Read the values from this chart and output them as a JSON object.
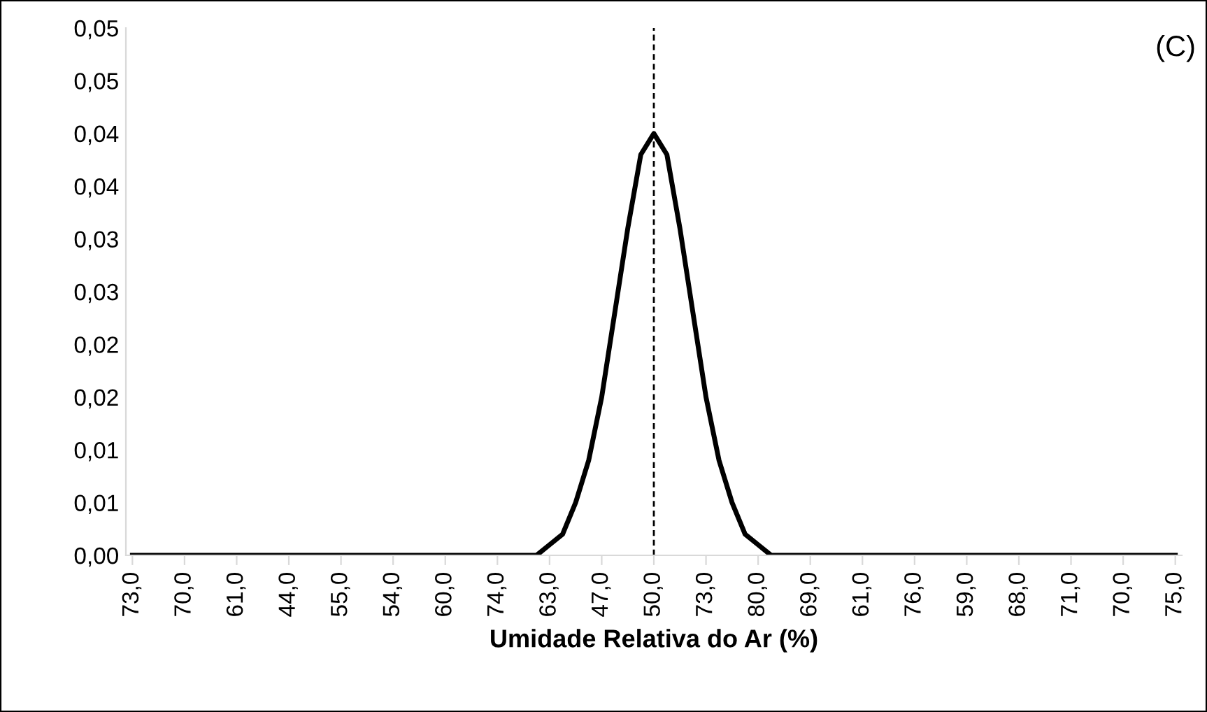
{
  "chart_data": {
    "type": "line",
    "xlabel": "Umidade Relativa do Ar (%)",
    "categories": [
      "73,0",
      null,
      null,
      null,
      "70,0",
      null,
      null,
      null,
      "61,0",
      null,
      null,
      null,
      "44,0",
      null,
      null,
      null,
      "55,0",
      null,
      null,
      null,
      "54,0",
      null,
      null,
      null,
      "60,0",
      null,
      null,
      null,
      "74,0",
      null,
      null,
      null,
      "63,0",
      null,
      null,
      null,
      "47,0",
      null,
      null,
      null,
      "50,0",
      null,
      null,
      null,
      "73,0",
      null,
      null,
      null,
      "80,0",
      null,
      null,
      null,
      "69,0",
      null,
      null,
      null,
      "61,0",
      null,
      null,
      null,
      "76,0",
      null,
      null,
      null,
      "59,0",
      null,
      null,
      null,
      "68,0",
      null,
      null,
      null,
      "71,0",
      null,
      null,
      null,
      "70,0",
      null,
      null,
      null,
      "75,0"
    ],
    "series": [
      {
        "color": "#000000",
        "values": [
          0,
          0,
          0,
          0,
          0,
          0,
          0,
          0,
          0,
          0,
          0,
          0,
          0,
          0,
          0,
          0,
          0,
          0,
          0,
          0,
          0,
          0,
          0,
          0,
          0,
          0,
          0,
          0,
          0,
          0,
          0,
          0,
          0.001,
          0.002,
          0.005,
          0.009,
          0.015,
          0.023,
          0.031,
          0.038,
          0.04,
          0.038,
          0.031,
          0.023,
          0.015,
          0.009,
          0.005,
          0.002,
          0.001,
          0,
          0,
          0,
          0,
          0,
          0,
          0,
          0,
          0,
          0,
          0,
          0,
          0,
          0,
          0,
          0,
          0,
          0,
          0,
          0,
          0,
          0,
          0,
          0,
          0,
          0,
          0,
          0,
          0,
          0,
          0,
          0
        ]
      }
    ],
    "ylim": [
      0,
      0.05
    ],
    "yticks": [
      {
        "value": 0,
        "label": "0,00"
      },
      {
        "value": 0.005,
        "label": "0,01"
      },
      {
        "value": 0.01,
        "label": "0,01"
      },
      {
        "value": 0.015,
        "label": "0,02"
      },
      {
        "value": 0.02,
        "label": "0,02"
      },
      {
        "value": 0.025,
        "label": "0,03"
      },
      {
        "value": 0.03,
        "label": "0,03"
      },
      {
        "value": 0.035,
        "label": "0,04"
      },
      {
        "value": 0.04,
        "label": "0,04"
      },
      {
        "value": 0.045,
        "label": "0,05"
      },
      {
        "value": 0.05,
        "label": "0,05"
      }
    ],
    "ref_lines": [
      {
        "axis": "x",
        "value": "50,0",
        "color": "#000000",
        "line_style": "dashed"
      }
    ],
    "annotations": [
      "(C)"
    ],
    "grid": false,
    "legend": false,
    "marker": "none",
    "line_style": "solid"
  }
}
